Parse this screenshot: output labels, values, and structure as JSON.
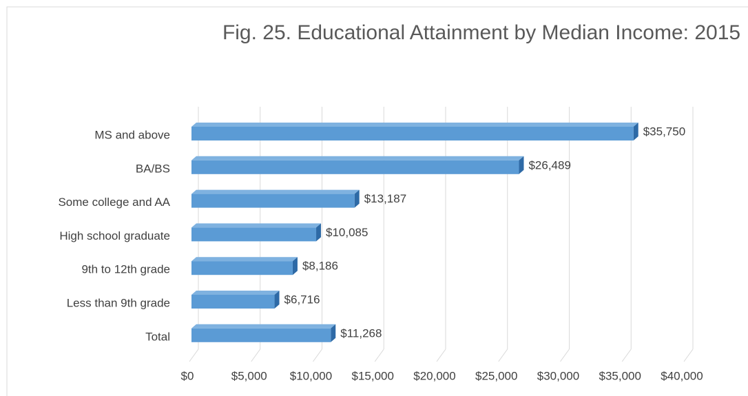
{
  "chart_data": {
    "type": "bar",
    "orientation": "horizontal",
    "title": "Fig. 25. Educational Attainment by Median Income: 2015",
    "categories": [
      "MS and above",
      "BA/BS",
      "Some college and AA",
      "High school graduate",
      "9th to 12th grade",
      "Less than 9th grade",
      "Total"
    ],
    "values": [
      35750,
      26489,
      13187,
      10085,
      8186,
      6716,
      11268
    ],
    "value_labels": [
      "$35,750",
      "$26,489",
      "$13,187",
      "$10,085",
      "$8,186",
      "$6,716",
      "$11,268"
    ],
    "color": "#5b9bd5",
    "xlim": [
      0,
      40000
    ],
    "xticks": [
      {
        "value": 0,
        "label": "$0"
      },
      {
        "value": 5000,
        "label": "$5,000"
      },
      {
        "value": 10000,
        "label": "$10,000"
      },
      {
        "value": 15000,
        "label": "$15,000"
      },
      {
        "value": 20000,
        "label": "$20,000"
      },
      {
        "value": 25000,
        "label": "$25,000"
      },
      {
        "value": 30000,
        "label": "$30,000"
      },
      {
        "value": 35000,
        "label": "$35,000"
      },
      {
        "value": 40000,
        "label": "$40,000"
      }
    ],
    "grid": true
  }
}
